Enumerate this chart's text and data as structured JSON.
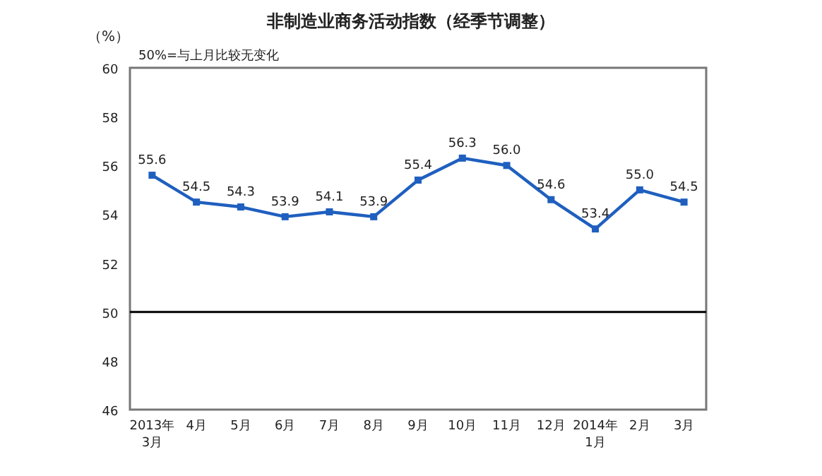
{
  "chart_data": {
    "type": "line",
    "title": "非制造业商务活动指数（经季节调整）",
    "ylabel": "（%）",
    "annotations": [
      "50%=与上月比较无变化"
    ],
    "categories": [
      "2013年 3月",
      "4月",
      "5月",
      "6月",
      "7月",
      "8月",
      "9月",
      "10月",
      "11月",
      "12月",
      "2014年 1月",
      "2月",
      "3月"
    ],
    "series": [
      {
        "color": "#1f5fbf",
        "values": [
          55.6,
          54.5,
          54.3,
          53.9,
          54.1,
          53.9,
          55.4,
          56.3,
          56.0,
          54.6,
          53.4,
          55.0,
          54.5
        ],
        "value_labels": [
          "55.6",
          "54.5",
          "54.3",
          "53.9",
          "54.1",
          "53.9",
          "55.4",
          "56.3",
          "56.0",
          "54.6",
          "53.4",
          "55.0",
          "54.5"
        ]
      }
    ],
    "ylim": [
      46,
      60
    ],
    "yticks": [
      46,
      48,
      50,
      52,
      54,
      56,
      58,
      60
    ],
    "ref_lines": [
      {
        "axis": "y",
        "value": 50,
        "color": "#000000"
      }
    ],
    "marker": "square"
  }
}
